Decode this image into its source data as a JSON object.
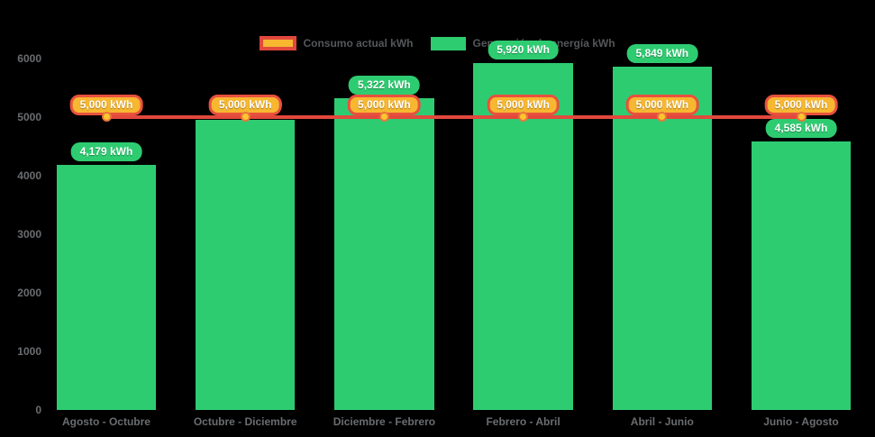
{
  "chart_data": {
    "type": "bar",
    "title": "",
    "categories": [
      "Agosto - Octubre",
      "Octubre - Diciembre",
      "Diciembre - Febrero",
      "Febrero - Abril",
      "Abril - Junio",
      "Junio - Agosto"
    ],
    "series": [
      {
        "name": "Consumo actual kWh",
        "type": "line",
        "values": [
          5000,
          5000,
          5000,
          5000,
          5000,
          5000
        ],
        "point_labels": [
          "5,000 kWh",
          "5,000 kWh",
          "5,000 kWh",
          "5,000 kWh",
          "5,000 kWh",
          "5,000 kWh"
        ],
        "line_color": "#e2483d",
        "label_fill": "#f7b731",
        "label_border": "#e8513d",
        "point_fill": "#fdc62f",
        "point_border": "#e8763b"
      },
      {
        "name": "Generación de energía kWh",
        "type": "bar",
        "values": [
          4179,
          4941,
          5322,
          5920,
          5849,
          4585
        ],
        "point_labels": [
          "4,179 kWh",
          "",
          "5,322 kWh",
          "5,920 kWh",
          "5,849 kWh",
          "4,585 kWh"
        ],
        "bar_color": "#2ecc71",
        "label_fill": "#2ecc71"
      }
    ],
    "xlabel": "",
    "ylabel": "",
    "ylim": [
      0,
      6000
    ],
    "yticks": [
      0,
      1000,
      2000,
      3000,
      4000,
      5000,
      6000
    ],
    "legend_position": "top",
    "grid": false,
    "background": "#000000",
    "axis_label_color": "#6a6d70",
    "legend_text_color": "#54575a"
  }
}
